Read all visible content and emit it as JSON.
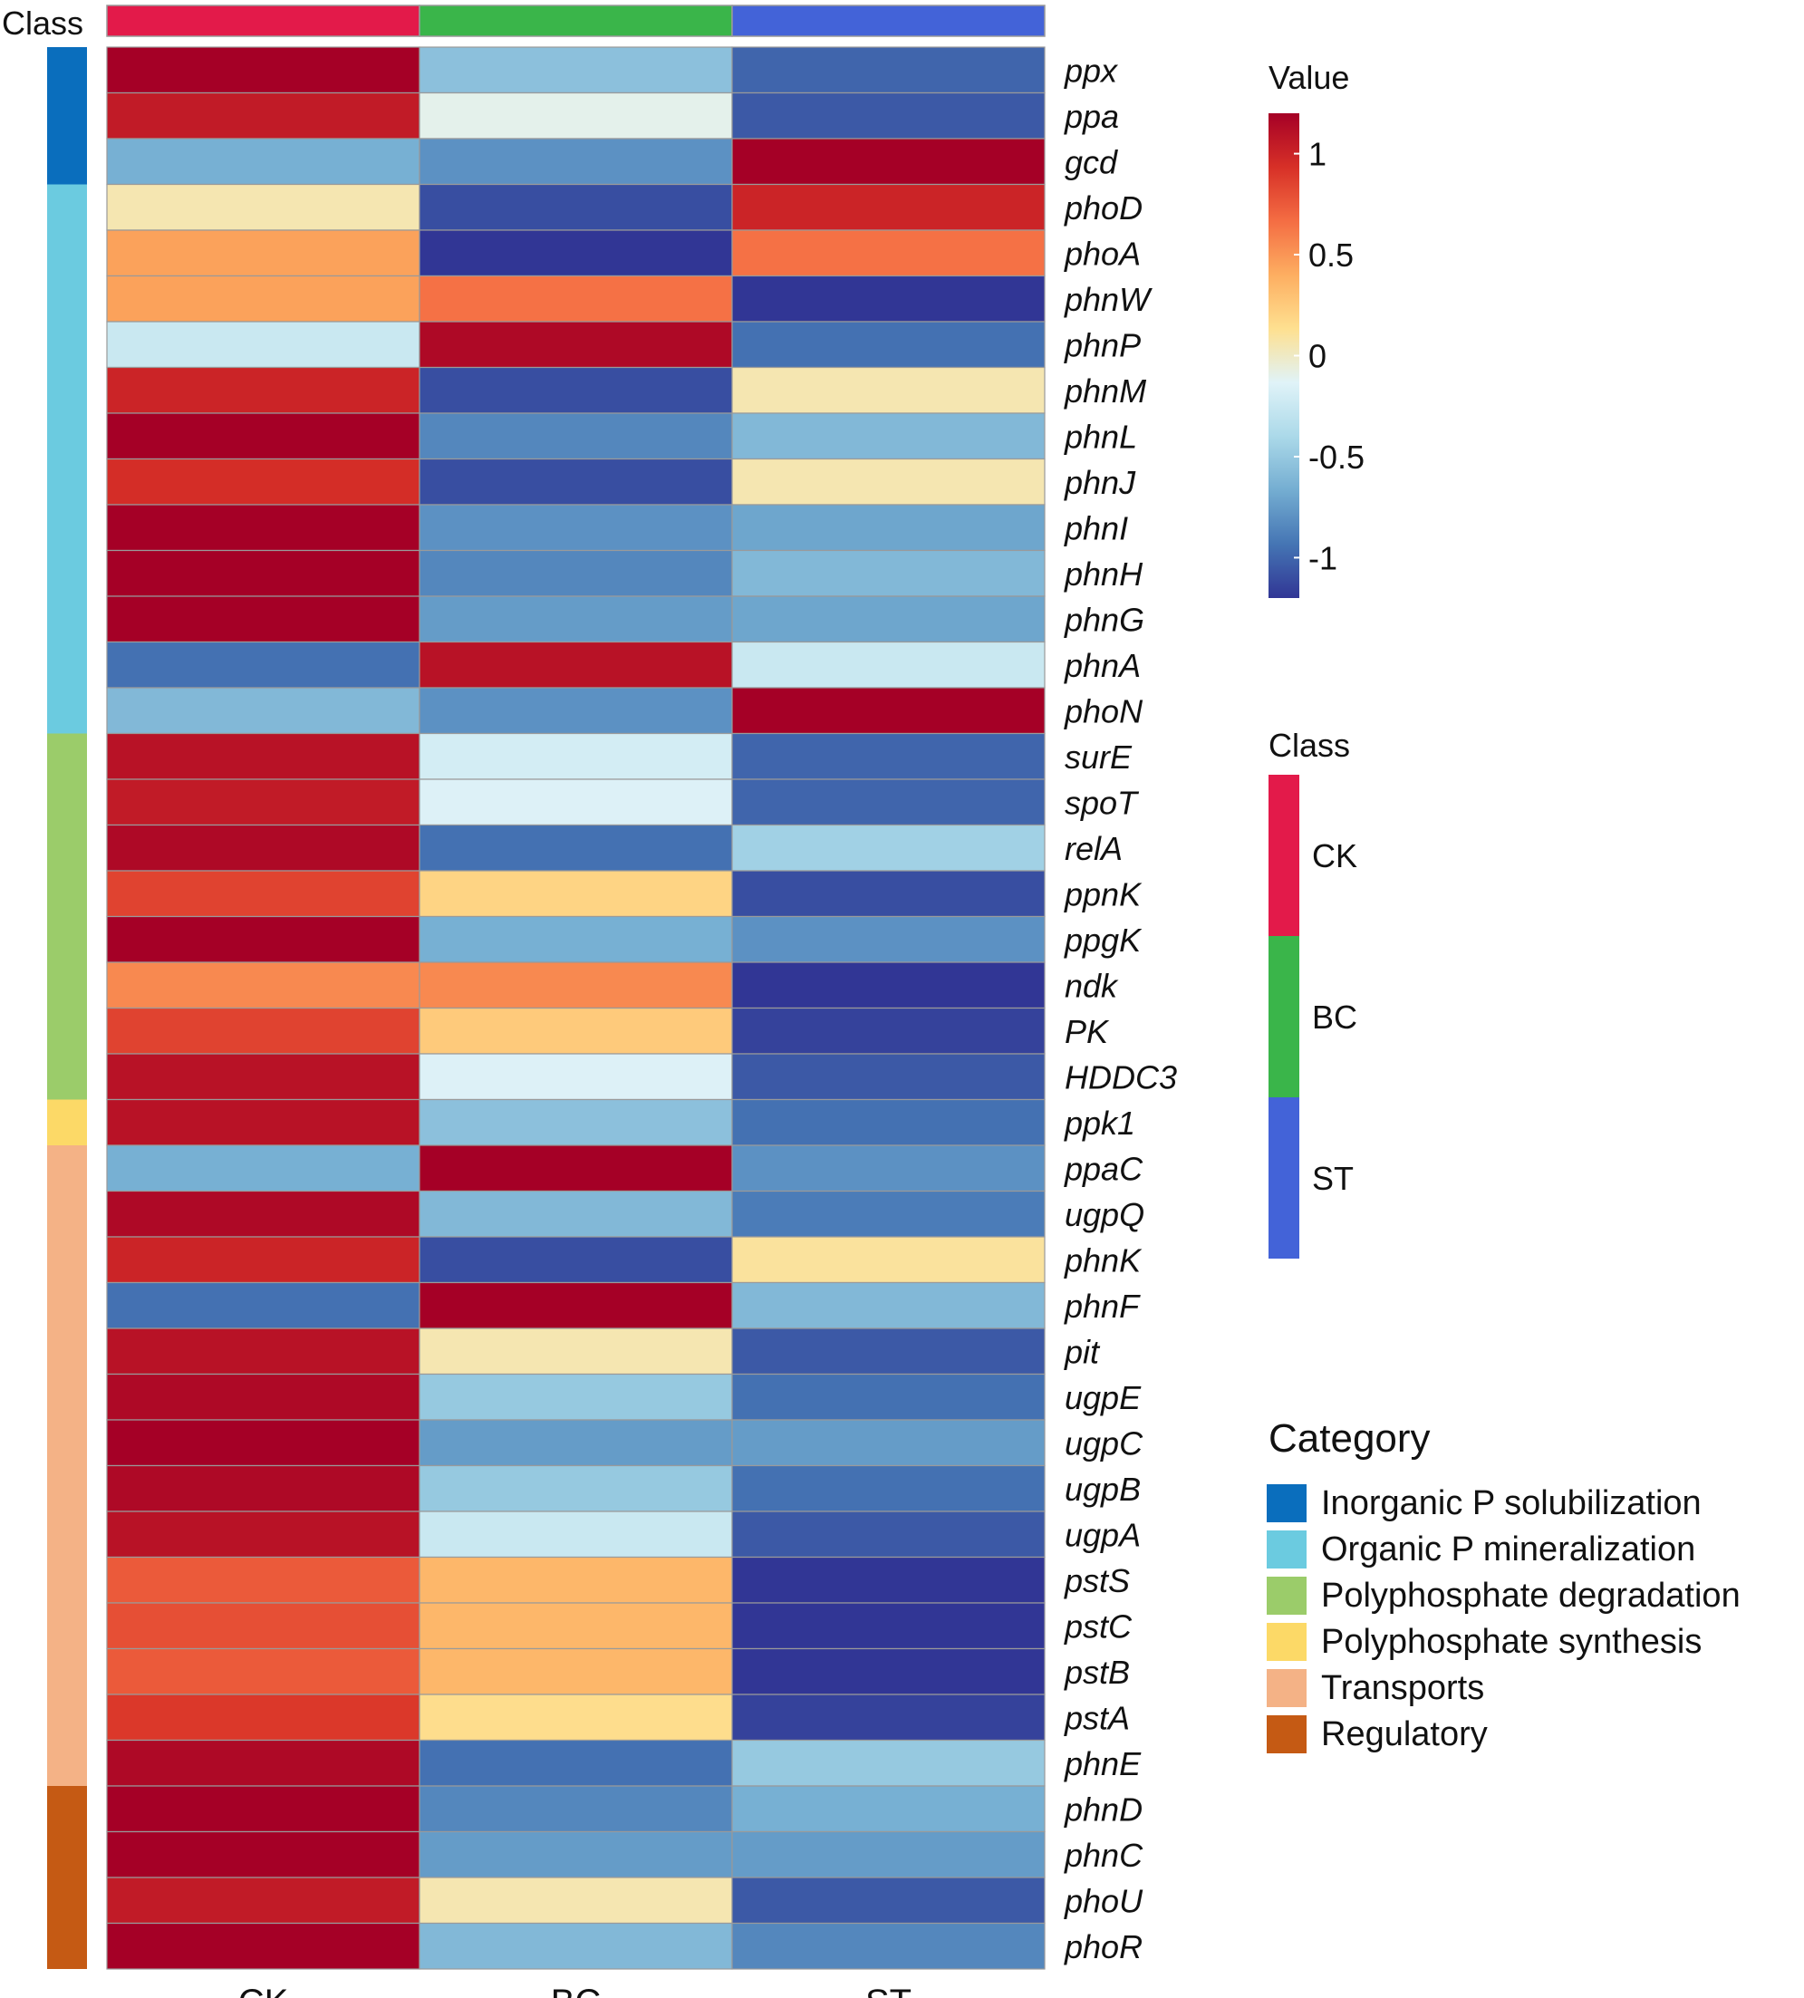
{
  "chart_data": {
    "type": "heatmap",
    "title": "",
    "columns": [
      "CK",
      "BC",
      "ST"
    ],
    "class_header_label": "Class",
    "rows": [
      {
        "gene": "ppx",
        "category": "Inorganic P solubilization",
        "values": [
          1.2,
          -0.55,
          -1.0
        ]
      },
      {
        "gene": "ppa",
        "category": "Inorganic P solubilization",
        "values": [
          1.05,
          -0.1,
          -1.05
        ]
      },
      {
        "gene": "gcd",
        "category": "Inorganic P solubilization",
        "values": [
          -0.65,
          -0.8,
          1.2
        ]
      },
      {
        "gene": "phoD",
        "category": "Organic P mineralization",
        "values": [
          0.05,
          -1.1,
          1.0
        ]
      },
      {
        "gene": "phoA",
        "category": "Organic P mineralization",
        "values": [
          0.45,
          -1.2,
          0.65
        ]
      },
      {
        "gene": "phnW",
        "category": "Organic P mineralization",
        "values": [
          0.45,
          0.65,
          -1.2
        ]
      },
      {
        "gene": "phnP",
        "category": "Organic P mineralization",
        "values": [
          -0.25,
          1.15,
          -0.95
        ]
      },
      {
        "gene": "phnM",
        "category": "Organic P mineralization",
        "values": [
          1.0,
          -1.1,
          0.05
        ]
      },
      {
        "gene": "phnL",
        "category": "Organic P mineralization",
        "values": [
          1.2,
          -0.85,
          -0.6
        ]
      },
      {
        "gene": "phnJ",
        "category": "Organic P mineralization",
        "values": [
          0.95,
          -1.1,
          0.05
        ]
      },
      {
        "gene": "phnI",
        "category": "Organic P mineralization",
        "values": [
          1.2,
          -0.8,
          -0.7
        ]
      },
      {
        "gene": "phnH",
        "category": "Organic P mineralization",
        "values": [
          1.2,
          -0.85,
          -0.6
        ]
      },
      {
        "gene": "phnG",
        "category": "Organic P mineralization",
        "values": [
          1.2,
          -0.75,
          -0.7
        ]
      },
      {
        "gene": "phnA",
        "category": "Organic P mineralization",
        "values": [
          -0.95,
          1.1,
          -0.25
        ]
      },
      {
        "gene": "phoN",
        "category": "Organic P mineralization",
        "values": [
          -0.6,
          -0.8,
          1.2
        ]
      },
      {
        "gene": "surE",
        "category": "Polyphosphate degradation",
        "values": [
          1.1,
          -0.2,
          -1.0
        ]
      },
      {
        "gene": "spoT",
        "category": "Polyphosphate degradation",
        "values": [
          1.05,
          -0.15,
          -1.0
        ]
      },
      {
        "gene": "relA",
        "category": "Polyphosphate degradation",
        "values": [
          1.15,
          -0.95,
          -0.45
        ]
      },
      {
        "gene": "ppnK",
        "category": "Polyphosphate degradation",
        "values": [
          0.85,
          0.2,
          -1.1
        ]
      },
      {
        "gene": "ppgK",
        "category": "Polyphosphate degradation",
        "values": [
          1.2,
          -0.65,
          -0.8
        ]
      },
      {
        "gene": "ndk",
        "category": "Polyphosphate degradation",
        "values": [
          0.55,
          0.55,
          -1.2
        ]
      },
      {
        "gene": "PK",
        "category": "Polyphosphate degradation",
        "values": [
          0.85,
          0.25,
          -1.15
        ]
      },
      {
        "gene": "HDDC3",
        "category": "Polyphosphate degradation",
        "values": [
          1.1,
          -0.15,
          -1.05
        ]
      },
      {
        "gene": "ppk1",
        "category": "Polyphosphate synthesis",
        "values": [
          1.1,
          -0.55,
          -0.95
        ]
      },
      {
        "gene": "ppaC",
        "category": "Transports",
        "values": [
          -0.65,
          1.2,
          -0.8
        ]
      },
      {
        "gene": "ugpQ",
        "category": "Transports",
        "values": [
          1.15,
          -0.6,
          -0.9
        ]
      },
      {
        "gene": "phnK",
        "category": "Transports",
        "values": [
          1.0,
          -1.1,
          0.1
        ]
      },
      {
        "gene": "phnF",
        "category": "Transports",
        "values": [
          -0.95,
          1.2,
          -0.6
        ]
      },
      {
        "gene": "pit",
        "category": "Transports",
        "values": [
          1.1,
          0.05,
          -1.05
        ]
      },
      {
        "gene": "ugpE",
        "category": "Transports",
        "values": [
          1.15,
          -0.5,
          -0.95
        ]
      },
      {
        "gene": "ugpC",
        "category": "Transports",
        "values": [
          1.2,
          -0.75,
          -0.75
        ]
      },
      {
        "gene": "ugpB",
        "category": "Transports",
        "values": [
          1.15,
          -0.5,
          -0.95
        ]
      },
      {
        "gene": "ugpA",
        "category": "Transports",
        "values": [
          1.1,
          -0.25,
          -1.05
        ]
      },
      {
        "gene": "pstS",
        "category": "Transports",
        "values": [
          0.75,
          0.35,
          -1.2
        ]
      },
      {
        "gene": "pstC",
        "category": "Transports",
        "values": [
          0.8,
          0.35,
          -1.2
        ]
      },
      {
        "gene": "pstB",
        "category": "Transports",
        "values": [
          0.75,
          0.35,
          -1.2
        ]
      },
      {
        "gene": "pstA",
        "category": "Transports",
        "values": [
          0.9,
          0.15,
          -1.15
        ]
      },
      {
        "gene": "phnE",
        "category": "Transports",
        "values": [
          1.15,
          -0.95,
          -0.5
        ]
      },
      {
        "gene": "phnD",
        "category": "Regulatory",
        "values": [
          1.2,
          -0.85,
          -0.65
        ]
      },
      {
        "gene": "phnC",
        "category": "Regulatory",
        "values": [
          1.2,
          -0.75,
          -0.75
        ]
      },
      {
        "gene": "phoU",
        "category": "Regulatory",
        "values": [
          1.05,
          0.05,
          -1.05
        ]
      },
      {
        "gene": "phoR",
        "category": "Regulatory",
        "values": [
          1.2,
          -0.6,
          -0.85
        ]
      }
    ],
    "value_legend": {
      "title": "Value",
      "min": -1.2,
      "max": 1.2,
      "ticks": [
        1,
        0.5,
        0,
        -0.5,
        -1
      ],
      "tick_labels": [
        "1",
        "0.5",
        "0",
        "-0.5",
        "-1"
      ],
      "colors": [
        "#313695",
        "#4575b4",
        "#74add1",
        "#abd9e9",
        "#e0f3f8",
        "#fee090",
        "#fdae61",
        "#f46d43",
        "#d73027",
        "#a50026"
      ]
    },
    "class_legend": {
      "title": "Class",
      "items": [
        {
          "label": "CK",
          "color": "#e31a4a"
        },
        {
          "label": "BC",
          "color": "#3ab54a"
        },
        {
          "label": "ST",
          "color": "#4363d8"
        }
      ]
    },
    "category_legend": {
      "title": "Category",
      "items": [
        {
          "label": "Inorganic P solubilization",
          "color": "#0a6ebd"
        },
        {
          "label": "Organic P mineralization",
          "color": "#6bcbe0"
        },
        {
          "label": "Polyphosphate degradation",
          "color": "#9bcc6a"
        },
        {
          "label": "Polyphosphate synthesis",
          "color": "#fcd967"
        },
        {
          "label": "Transports",
          "color": "#f4b286"
        },
        {
          "label": "Regulatory",
          "color": "#c55a14"
        }
      ]
    }
  }
}
